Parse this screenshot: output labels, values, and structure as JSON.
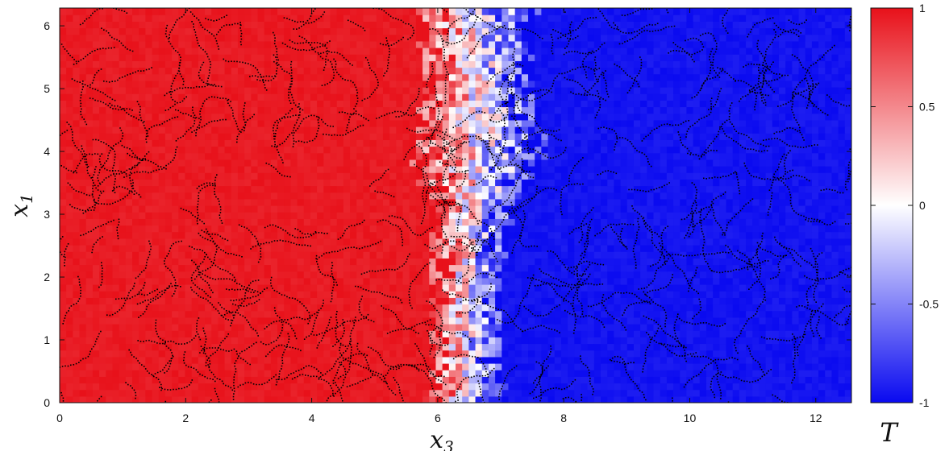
{
  "chart_data": {
    "type": "heatmap",
    "title": "",
    "xlabel": {
      "base": "x",
      "sub": "3"
    },
    "ylabel": {
      "base": "x",
      "sub": "1"
    },
    "xlim": [
      0,
      12.566
    ],
    "ylim": [
      0,
      6.283
    ],
    "xticks": [
      0,
      2,
      4,
      6,
      8,
      10,
      12
    ],
    "yticks": [
      0,
      1,
      2,
      3,
      4,
      5,
      6
    ],
    "colorbar": {
      "label": "T",
      "label_color": "#1a1adc",
      "range": [
        -1,
        1
      ],
      "ticks": [
        "1",
        "0.5",
        "0",
        "-0.5",
        "-1"
      ],
      "tick_values": [
        1,
        0.5,
        0,
        -0.5,
        -1
      ],
      "colors": {
        "high": "#e8111a",
        "mid": "#ffffff",
        "low": "#0a0af0"
      }
    },
    "front": {
      "description_of_field": "T = +1 (hot) for small x3, T = -1 (cold) for large x3, mixing front near x3 ≈ 6–7",
      "x3_left_edge_by_x1": [
        [
          0,
          5.8
        ],
        [
          1,
          5.9
        ],
        [
          2,
          5.9
        ],
        [
          3,
          5.9
        ],
        [
          4,
          5.5
        ],
        [
          5,
          5.8
        ],
        [
          6.283,
          5.6
        ]
      ],
      "x3_right_edge_by_x1": [
        [
          0,
          7.1
        ],
        [
          1,
          7.0
        ],
        [
          2,
          7.0
        ],
        [
          3,
          7.2
        ],
        [
          4,
          7.8
        ],
        [
          5,
          7.5
        ],
        [
          6.283,
          7.6
        ]
      ]
    },
    "overlay": "black tracer particles (points)"
  }
}
